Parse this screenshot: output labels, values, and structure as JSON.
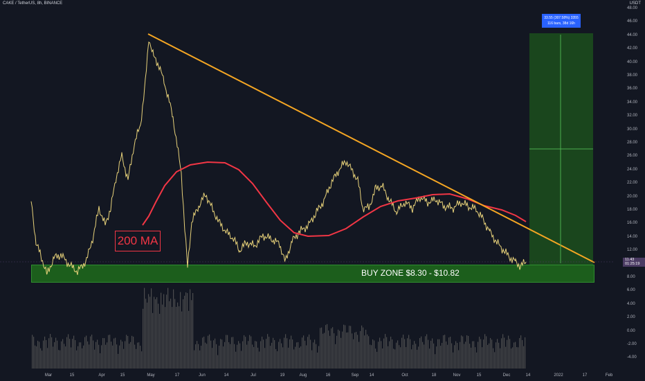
{
  "header": {
    "symbol": "CAKE / TetherUS, 8h, BINANCE",
    "currency": "USDT"
  },
  "price_axis": [
    "48.00",
    "46.00",
    "44.00",
    "42.00",
    "40.00",
    "38.00",
    "36.00",
    "34.00",
    "32.00",
    "30.00",
    "28.00",
    "26.00",
    "24.00",
    "22.00",
    "20.00",
    "18.00",
    "16.00",
    "14.00",
    "12.00",
    "10.00",
    "8.00",
    "6.00",
    "4.00",
    "2.00",
    "0.00",
    "-2.00",
    "-4.00"
  ],
  "time_axis": [
    "Mar",
    "15",
    "Apr",
    "15",
    "May",
    "17",
    "Jun",
    "14",
    "Jul",
    "19",
    "Aug",
    "16",
    "Sep",
    "14",
    "Oct",
    "18",
    "Nov",
    "15",
    "Dec",
    "14",
    "2022",
    "17",
    "Feb"
  ],
  "current_price": {
    "price": "11.43",
    "countdown": "01:25:19"
  },
  "annotations": {
    "buy_zone": "BUY ZONE $8.30 - $10.82",
    "ma_label": "200 MA",
    "target_line1": "33.55 (307.58%) 3355",
    "target_line2": "116 bars, 38d 16h"
  },
  "colors": {
    "background": "#131722",
    "trendline": "#f5a623",
    "ma": "#f23645",
    "buy_zone": "#1c5e1c",
    "price": "#e8d27a"
  }
}
